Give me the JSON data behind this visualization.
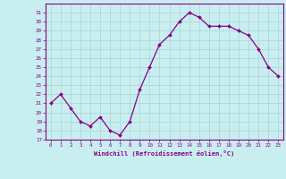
{
  "x": [
    0,
    1,
    2,
    3,
    4,
    5,
    6,
    7,
    8,
    9,
    10,
    11,
    12,
    13,
    14,
    15,
    16,
    17,
    18,
    19,
    20,
    21,
    22,
    23
  ],
  "y": [
    21,
    22,
    20.5,
    19,
    18.5,
    19.5,
    18,
    17.5,
    19,
    22.5,
    25,
    27.5,
    28.5,
    30,
    31,
    30.5,
    29.5,
    29.5,
    29.5,
    29,
    28.5,
    27,
    25,
    24
  ],
  "line_color": "#880088",
  "marker_color": "#880088",
  "bg_color": "#c8eef0",
  "grid_color": "#aad4d8",
  "xlabel": "Windchill (Refroidissement éolien,°C)",
  "ylim": [
    17,
    32
  ],
  "xlim": [
    -0.5,
    23.5
  ],
  "yticks": [
    17,
    18,
    19,
    20,
    21,
    22,
    23,
    24,
    25,
    26,
    27,
    28,
    29,
    30,
    31
  ],
  "xticks": [
    0,
    1,
    2,
    3,
    4,
    5,
    6,
    7,
    8,
    9,
    10,
    11,
    12,
    13,
    14,
    15,
    16,
    17,
    18,
    19,
    20,
    21,
    22,
    23
  ]
}
